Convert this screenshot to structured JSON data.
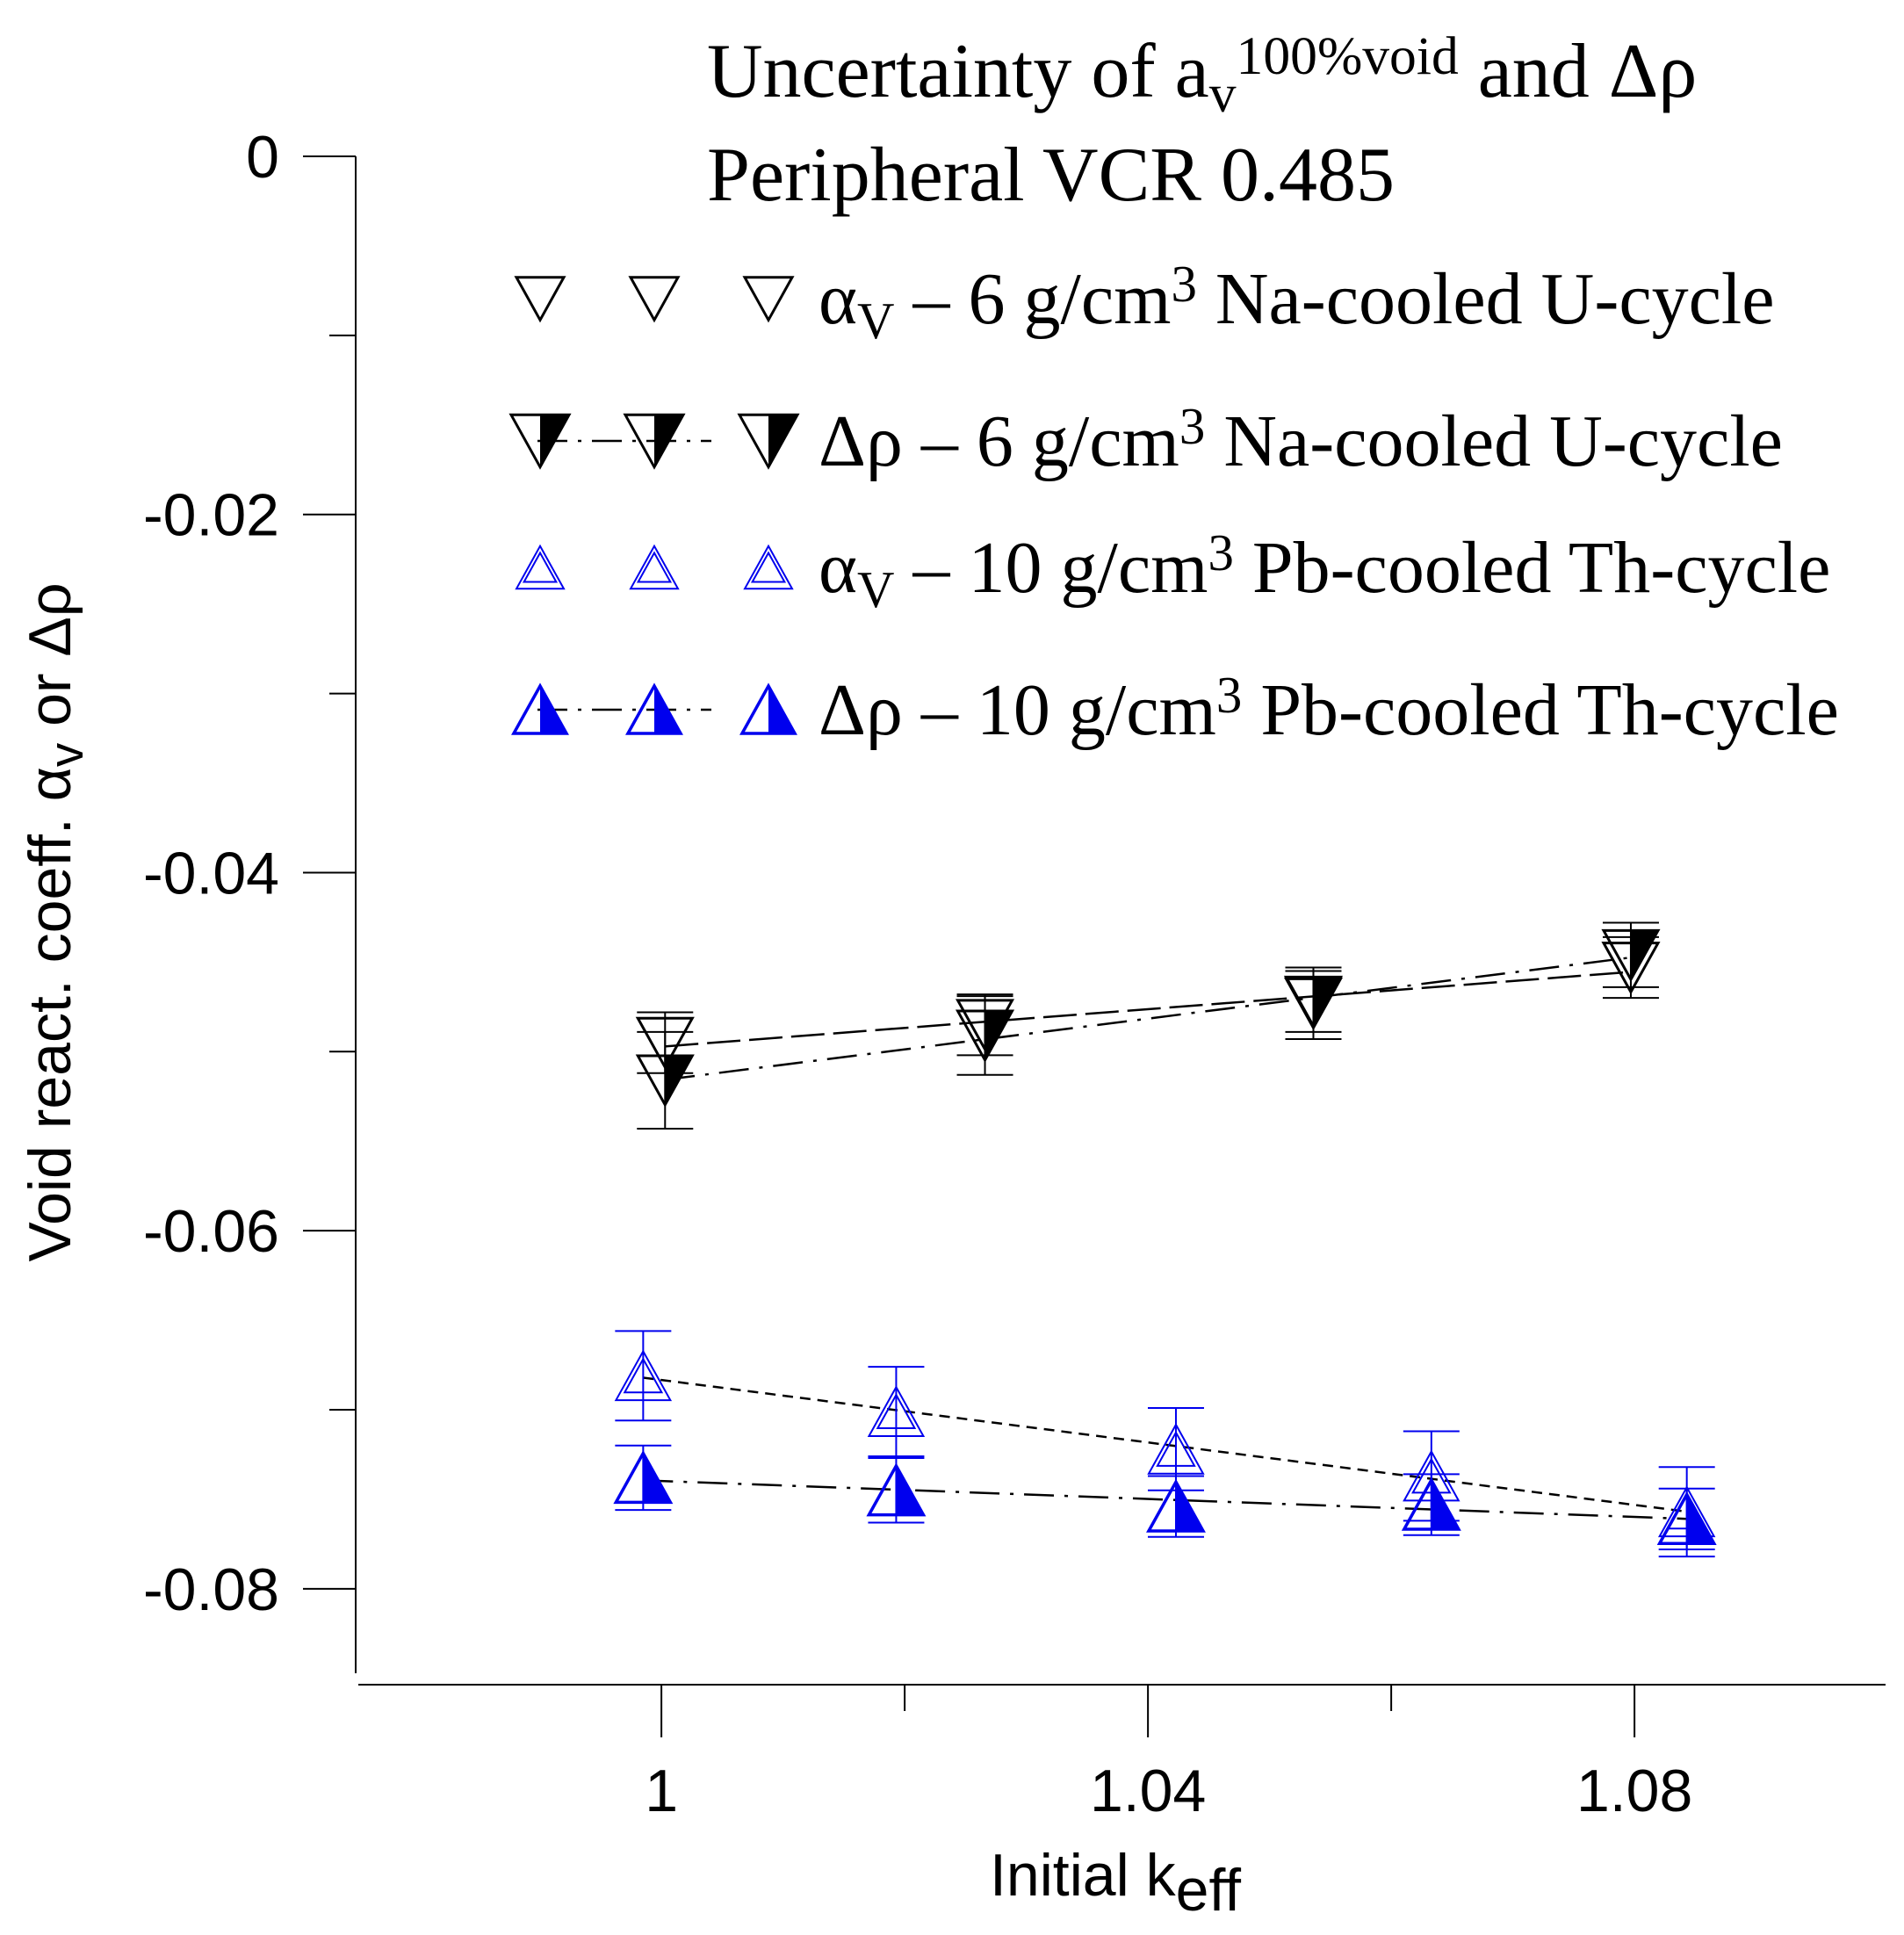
{
  "chart_data": {
    "type": "scatter",
    "title_lines": [
      {
        "parts": [
          {
            "text": "Uncertainty of a"
          },
          {
            "text": "v",
            "shift": "sub"
          },
          {
            "text": "100%void",
            "shift": "super"
          },
          {
            "text": " and Δρ"
          }
        ]
      },
      {
        "parts": [
          {
            "text": "Peripheral VCR 0.485"
          }
        ]
      }
    ],
    "xlabel": {
      "main": "Initial k",
      "sub": "eff"
    },
    "ylabel": {
      "main": "Void react. coeff. α",
      "sub": "v",
      "tail": " or Δρ"
    },
    "xlim": [
      0.9875,
      1.0875
    ],
    "ylim": [
      -0.0855,
      0.0
    ],
    "x_ticks": [
      1.0,
      1.04,
      1.08
    ],
    "x_tick_labels": [
      "1",
      "1.04",
      "1.08"
    ],
    "x_minor_ticks": [
      1.02,
      1.06
    ],
    "y_ticks": [
      0.0,
      -0.02,
      -0.04,
      -0.06,
      -0.08
    ],
    "y_tick_labels": [
      "0",
      "-0.02",
      "-0.04",
      "-0.06",
      "-0.08"
    ],
    "y_minor_ticks": [
      -0.01,
      -0.03,
      -0.05,
      -0.07
    ],
    "grid": false,
    "legend_position": "top-right",
    "series": [
      {
        "name_parts": [
          {
            "text": "α"
          },
          {
            "text": "V",
            "shift": "sub"
          },
          {
            "text": " – 6 g/cm"
          },
          {
            "text": "3",
            "shift": "super"
          },
          {
            "text": " Na-cooled U-cycle"
          }
        ],
        "marker": "down-triangle-open",
        "color": "#000000",
        "line_style": "longdash",
        "x": [
          1.0003,
          1.0266,
          1.0536,
          1.0797
        ],
        "y": [
          -0.0495,
          -0.0485,
          -0.0472,
          -0.0453
        ],
        "err": [
          0.0017,
          0.0017,
          0.0017,
          0.0017
        ]
      },
      {
        "name_parts": [
          {
            "text": "Δρ – 6 g/cm"
          },
          {
            "text": "3",
            "shift": "super"
          },
          {
            "text": " Na-cooled U-cycle"
          }
        ],
        "marker": "down-triangle-half",
        "color": "#000000",
        "line_style": "dashdot",
        "x": [
          1.0003,
          1.0266,
          1.0536,
          1.0797
        ],
        "y": [
          -0.0516,
          -0.0491,
          -0.0473,
          -0.0446
        ],
        "err": [
          0.0027,
          0.0022,
          0.002,
          0.0018
        ]
      },
      {
        "name_parts": [
          {
            "text": "α"
          },
          {
            "text": "V",
            "shift": "sub"
          },
          {
            "text": " – 10 g/cm"
          },
          {
            "text": "3",
            "shift": "super"
          },
          {
            "text": " Pb-cooled Th-cycle"
          }
        ],
        "marker": "up-triangle-double",
        "color": "#0000ee",
        "line_style": "shortdash",
        "x": [
          0.9985,
          1.0193,
          1.0423,
          1.0633,
          1.0843
        ],
        "y": [
          -0.0681,
          -0.0701,
          -0.0722,
          -0.0737,
          -0.0757
        ],
        "err": [
          0.0025,
          0.0025,
          0.0023,
          0.0025,
          0.0025
        ]
      },
      {
        "name_parts": [
          {
            "text": "Δρ – 10 g/cm"
          },
          {
            "text": "3",
            "shift": "super"
          },
          {
            "text": " Pb-cooled Th-cycle"
          }
        ],
        "marker": "up-triangle-half",
        "color": "#0000ee",
        "line_style": "dashdot",
        "x": [
          0.9985,
          1.0193,
          1.0423,
          1.0633,
          1.0843
        ],
        "y": [
          -0.0738,
          -0.0745,
          -0.0754,
          -0.0753,
          -0.0761
        ],
        "err": [
          0.0018,
          0.0018,
          0.0017,
          0.0017,
          0.0017
        ]
      }
    ]
  }
}
